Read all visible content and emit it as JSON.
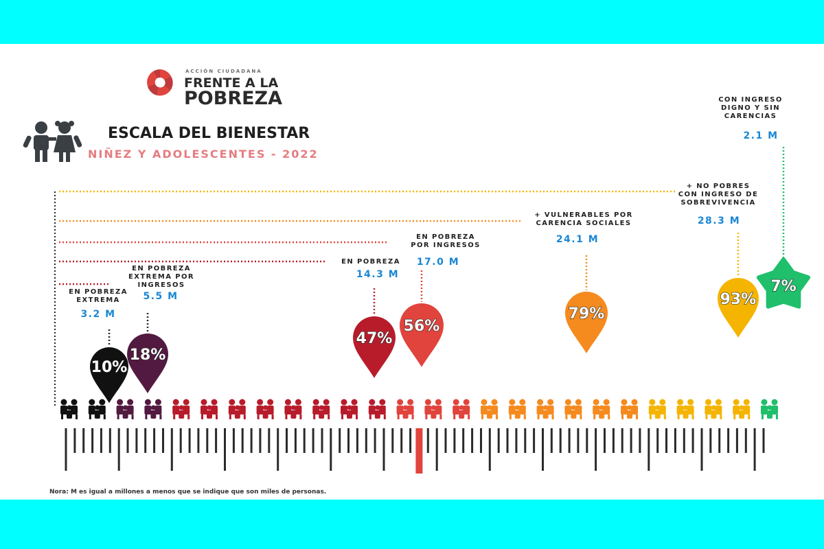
{
  "logo": {
    "line1": "ACCIÓN CIUDADANA",
    "line2": "FRENTE A LA",
    "line3": "POBREZA"
  },
  "header": {
    "title": "ESCALA DEL BIENESTAR",
    "subtitle": "NIÑEZ Y ADOLESCENTES - 2022"
  },
  "note": "Nora: M es igual a millones a menos que se indique que son miles de personas.",
  "colors": {
    "extreme": "#111111",
    "extreme_income": "#521a40",
    "poverty": "#b81c2b",
    "poverty_income": "#e0443d",
    "vulnerable": "#f58a1f",
    "survival": "#f4b400",
    "dignified": "#1fbf6b",
    "value_blue": "#1a87d4"
  },
  "chart_data": {
    "type": "bar",
    "title": "ESCALA DEL BIENESTAR",
    "subtitle": "NIÑEZ Y ADOLESCENTES - 2022",
    "markers": [
      {
        "label": [
          "EN POBREZA",
          "EXTREMA"
        ],
        "value": "3.2 M",
        "percent": "10%",
        "color": "#111111",
        "shape": "pin"
      },
      {
        "label": [
          "EN POBREZA",
          "EXTREMA POR",
          "INGRESOS"
        ],
        "value": "5.5 M",
        "percent": "18%",
        "color": "#521a40",
        "shape": "pin"
      },
      {
        "label": [
          "EN POBREZA"
        ],
        "value": "14.3 M",
        "percent": "47%",
        "color": "#b81c2b",
        "shape": "pin"
      },
      {
        "label": [
          "EN POBREZA",
          "POR INGRESOS"
        ],
        "value": "17.0 M",
        "percent": "56%",
        "color": "#e0443d",
        "shape": "pin"
      },
      {
        "label": [
          "+ VULNERABLES POR",
          "CARENCIA SOCIALES"
        ],
        "value": "24.1 M",
        "percent": "79%",
        "color": "#f58a1f",
        "shape": "pin"
      },
      {
        "label": [
          "+ NO POBRES",
          "CON INGRESO DE",
          "SOBREVIVENCIA"
        ],
        "value": "28.3 M",
        "percent": "93%",
        "color": "#f4b400",
        "shape": "pin"
      },
      {
        "label": [
          "CON INGRESO",
          "DIGNO Y SIN",
          "CARENCIAS"
        ],
        "value": "2.1 M",
        "percent": "7%",
        "color": "#1fbf6b",
        "shape": "star"
      }
    ],
    "people_icons": {
      "count": 26,
      "color_groups": [
        {
          "color": "#111111",
          "count": 2
        },
        {
          "color": "#521a40",
          "count": 2
        },
        {
          "color": "#b81c2b",
          "count": 8
        },
        {
          "color": "#e0443d",
          "count": 3
        },
        {
          "color": "#f58a1f",
          "count": 6
        },
        {
          "color": "#f4b400",
          "count": 4
        },
        {
          "color": "#1fbf6b",
          "count": 1
        }
      ]
    },
    "scale_highlight_percent": 50
  }
}
